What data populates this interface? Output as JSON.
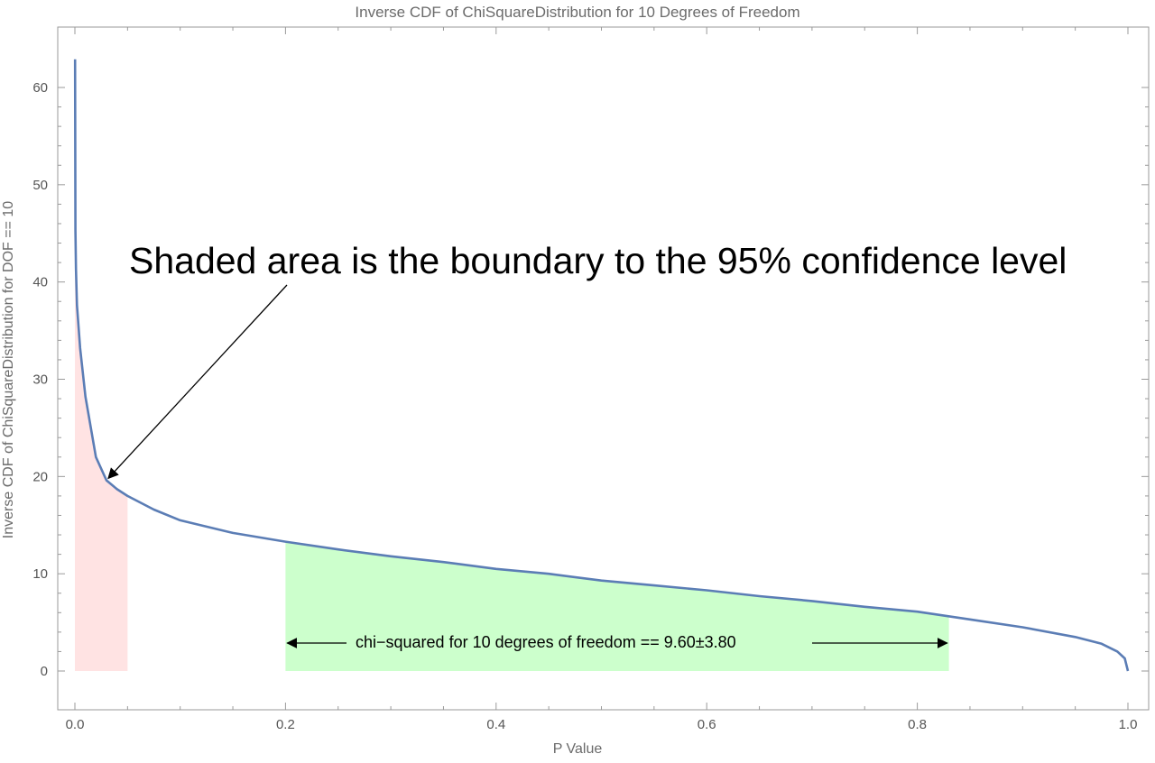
{
  "chart_data": {
    "type": "line",
    "title": "Inverse CDF of ChiSquareDistribution for 10 Degrees of Freedom",
    "xlabel": "P Value",
    "ylabel": "Inverse CDF of ChiSquareDistribution for DOF == 10",
    "xlim": [
      0.0,
      1.0
    ],
    "ylim": [
      -3,
      63
    ],
    "x_ticks": [
      "0.0",
      "0.2",
      "0.4",
      "0.6",
      "0.8",
      "1.0"
    ],
    "y_ticks": [
      "0",
      "10",
      "20",
      "30",
      "40",
      "50",
      "60"
    ],
    "series": [
      {
        "color": "#5b7db5",
        "points": [
          [
            0.0002,
            62.9
          ],
          [
            0.0005,
            45.3
          ],
          [
            0.001,
            41.3
          ],
          [
            0.002,
            37.6
          ],
          [
            0.005,
            33.2
          ],
          [
            0.01,
            28.2
          ],
          [
            0.02,
            22.0
          ],
          [
            0.03,
            19.6
          ],
          [
            0.04,
            18.7
          ],
          [
            0.05,
            18.0
          ],
          [
            0.075,
            16.6
          ],
          [
            0.1,
            15.5
          ],
          [
            0.15,
            14.2
          ],
          [
            0.2,
            13.3
          ],
          [
            0.25,
            12.5
          ],
          [
            0.3,
            11.8
          ],
          [
            0.35,
            11.2
          ],
          [
            0.4,
            10.5
          ],
          [
            0.45,
            10.0
          ],
          [
            0.5,
            9.3
          ],
          [
            0.55,
            8.8
          ],
          [
            0.6,
            8.3
          ],
          [
            0.65,
            7.7
          ],
          [
            0.7,
            7.2
          ],
          [
            0.75,
            6.6
          ],
          [
            0.8,
            6.1
          ],
          [
            0.85,
            5.3
          ],
          [
            0.9,
            4.5
          ],
          [
            0.95,
            3.5
          ],
          [
            0.975,
            2.8
          ],
          [
            0.99,
            2.0
          ],
          [
            0.997,
            1.3
          ],
          [
            1.0,
            0.0
          ]
        ]
      }
    ],
    "shaded_regions": [
      {
        "x_start": 0.0,
        "x_end": 0.05,
        "color": "#ffe3e3"
      },
      {
        "x_start": 0.2,
        "x_end": 0.83,
        "color": "#ccffcc"
      }
    ],
    "annotations": [
      {
        "text": "Shaded area is the boundary to the 95% confidence level",
        "arrow_to": [
          0.03,
          20.0
        ]
      },
      {
        "text": "chi−squared for 10 degrees of freedom == 9.60±3.80",
        "arrow_span": [
          0.2,
          0.83
        ]
      }
    ]
  }
}
